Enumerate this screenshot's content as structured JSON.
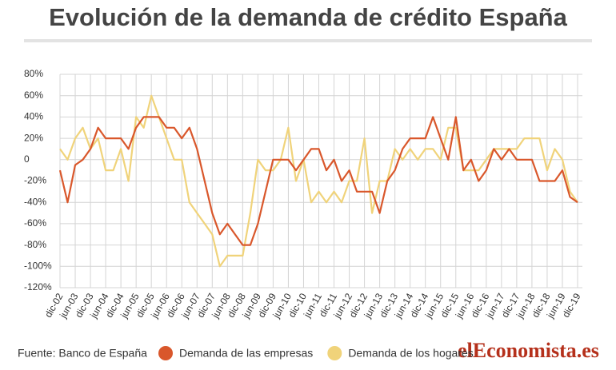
{
  "chart_data": {
    "type": "line",
    "title": "Evolución de la demanda de crédito España",
    "source": "Fuente: Banco de España",
    "logo": "elEconomista.es",
    "categories": [
      "dic-02",
      null,
      "jun-03",
      null,
      "dic-03",
      null,
      "jun-04",
      null,
      "dic-04",
      null,
      "jun-05",
      null,
      "dic-05",
      null,
      "jun-06",
      null,
      "dic-06",
      null,
      "jun-07",
      null,
      "dic-07",
      null,
      "jun-08",
      null,
      "dic-08",
      null,
      "jun-09",
      null,
      "dic-09",
      null,
      "jun-10",
      null,
      "dic-10",
      null,
      "jun-11",
      null,
      "dic-11",
      null,
      "jun-12",
      null,
      "dic-12",
      null,
      "jun-13",
      null,
      "dic-13",
      null,
      "jun-14",
      null,
      "dic-14",
      null,
      "jun-15",
      null,
      "dic-15",
      null,
      "jun-16",
      null,
      "dic-16",
      null,
      "jun-17",
      null,
      "dic-17",
      null,
      "jun-18",
      null,
      "dic-18",
      null,
      "jun-19",
      null,
      "dic-19"
    ],
    "series": [
      {
        "name": "Demanda de las empresas",
        "color": "#d9572b",
        "values": [
          -10,
          -40,
          -5,
          0,
          10,
          30,
          20,
          20,
          20,
          10,
          30,
          40,
          40,
          40,
          30,
          30,
          20,
          30,
          10,
          -20,
          -50,
          -70,
          -60,
          -70,
          -80,
          -80,
          -60,
          -30,
          0,
          0,
          0,
          -10,
          0,
          10,
          10,
          -10,
          0,
          -20,
          -10,
          -30,
          -30,
          -30,
          -50,
          -20,
          -10,
          10,
          20,
          20,
          20,
          40,
          20,
          0,
          40,
          -10,
          0,
          -20,
          -10,
          10,
          0,
          10,
          0,
          0,
          0,
          -20,
          -20,
          -20,
          -10,
          -35,
          -40
        ]
      },
      {
        "name": "Demanda de los hogares",
        "color": "#f0d37a",
        "values": [
          10,
          0,
          20,
          30,
          10,
          20,
          -10,
          -10,
          10,
          -20,
          40,
          30,
          60,
          40,
          20,
          0,
          0,
          -40,
          -50,
          -60,
          -70,
          -100,
          -90,
          -90,
          -90,
          -50,
          0,
          -10,
          -10,
          0,
          30,
          -20,
          0,
          -40,
          -30,
          -40,
          -30,
          -40,
          -20,
          -20,
          20,
          -50,
          -20,
          -20,
          10,
          0,
          10,
          0,
          10,
          10,
          0,
          30,
          30,
          -10,
          -10,
          -10,
          0,
          10,
          10,
          10,
          10,
          20,
          20,
          20,
          -10,
          10,
          0,
          -30,
          -40
        ]
      }
    ],
    "ylim": [
      -120,
      80
    ],
    "yticks": [
      {
        "value": -120,
        "label": "-120%"
      },
      {
        "value": -100,
        "label": "-100%"
      },
      {
        "value": -80,
        "label": "-80%"
      },
      {
        "value": -60,
        "label": "-60%"
      },
      {
        "value": -40,
        "label": "-40%"
      },
      {
        "value": -20,
        "label": "-20%"
      },
      0,
      {
        "value": 20,
        "label": "20%"
      },
      {
        "value": 40,
        "label": "40%"
      },
      {
        "value": 60,
        "label": "60%"
      },
      {
        "value": 80,
        "label": "80%"
      }
    ],
    "grid": true
  }
}
